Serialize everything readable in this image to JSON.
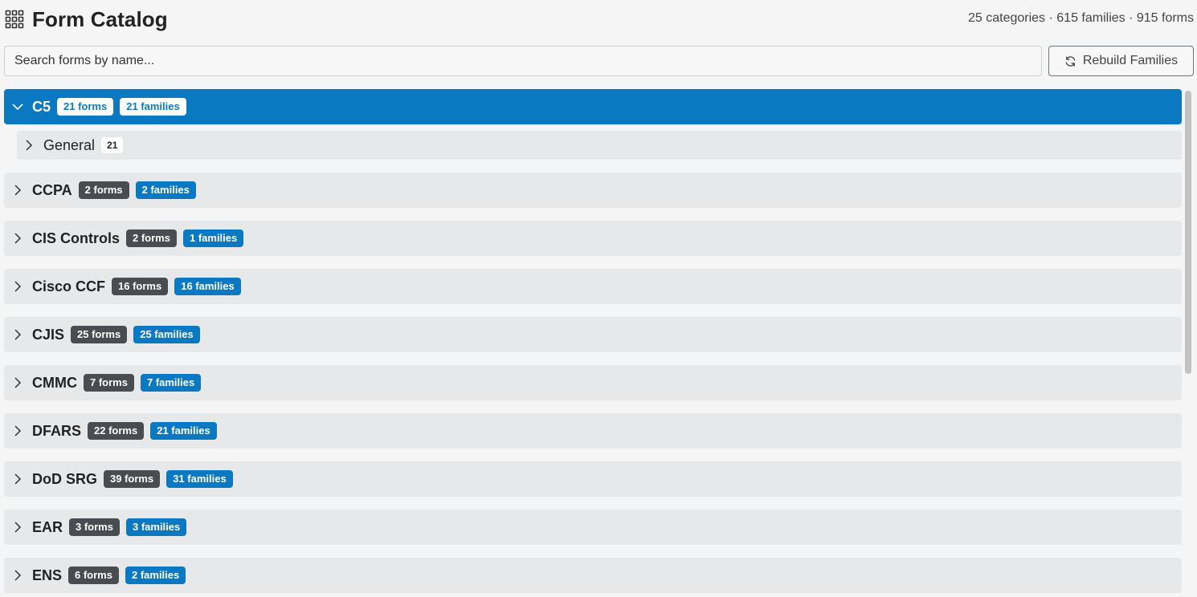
{
  "header": {
    "title": "Form Catalog",
    "stats": "25 categories · 615 families · 915 forms",
    "icon": "grid-icon"
  },
  "search": {
    "placeholder": "Search forms by name...",
    "value": ""
  },
  "toolbar": {
    "rebuild_label": "Rebuild Families",
    "rebuild_icon": "refresh-icon"
  },
  "colors": {
    "accent": "#0a79c2",
    "row_bg": "#e6e8ea",
    "dark_badge": "#494d51"
  },
  "categories": [
    {
      "name": "C5",
      "forms": "21 forms",
      "families": "21 families",
      "expanded": true,
      "subcategories": [
        {
          "name": "General",
          "count": "21"
        }
      ]
    },
    {
      "name": "CCPA",
      "forms": "2 forms",
      "families": "2 families",
      "expanded": false
    },
    {
      "name": "CIS Controls",
      "forms": "2 forms",
      "families": "1 families",
      "expanded": false
    },
    {
      "name": "Cisco CCF",
      "forms": "16 forms",
      "families": "16 families",
      "expanded": false
    },
    {
      "name": "CJIS",
      "forms": "25 forms",
      "families": "25 families",
      "expanded": false
    },
    {
      "name": "CMMC",
      "forms": "7 forms",
      "families": "7 families",
      "expanded": false
    },
    {
      "name": "DFARS",
      "forms": "22 forms",
      "families": "21 families",
      "expanded": false
    },
    {
      "name": "DoD SRG",
      "forms": "39 forms",
      "families": "31 families",
      "expanded": false
    },
    {
      "name": "EAR",
      "forms": "3 forms",
      "families": "3 families",
      "expanded": false
    },
    {
      "name": "ENS",
      "forms": "6 forms",
      "families": "2 families",
      "expanded": false
    }
  ]
}
